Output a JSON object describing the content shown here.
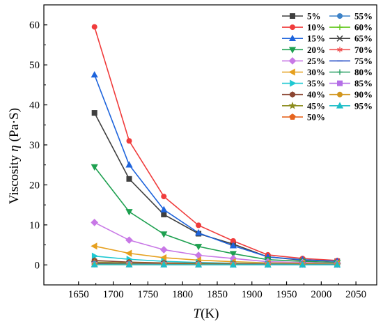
{
  "chart_data": {
    "type": "line",
    "xlabel_italic": "T",
    "xlabel_rest": "(K)",
    "ylabel_prefix": "Viscosity ",
    "ylabel_italic": "η",
    "ylabel_rest": " (Pa·S)",
    "xlim": [
      1600,
      2080
    ],
    "ylim": [
      -5,
      65
    ],
    "xticks": [
      1650,
      1700,
      1750,
      1800,
      1850,
      1900,
      1950,
      2000,
      2050
    ],
    "yticks": [
      0,
      10,
      20,
      30,
      40,
      50,
      60
    ],
    "x": [
      1673,
      1723,
      1773,
      1823,
      1873,
      1923,
      1973,
      2023
    ],
    "series": [
      {
        "name": "5%",
        "color": "#3f3f3f",
        "marker": "square",
        "values": [
          38.0,
          21.5,
          12.6,
          7.8,
          5.2,
          2.0,
          1.2,
          0.9
        ]
      },
      {
        "name": "10%",
        "color": "#f03c3c",
        "marker": "circle",
        "values": [
          59.5,
          31.0,
          17.1,
          9.9,
          6.0,
          2.5,
          1.6,
          1.1
        ]
      },
      {
        "name": "15%",
        "color": "#1e64dc",
        "marker": "triangle-up",
        "values": [
          47.5,
          25.0,
          13.8,
          8.0,
          4.8,
          2.0,
          1.3,
          0.9
        ]
      },
      {
        "name": "20%",
        "color": "#1ea050",
        "marker": "triangle-down",
        "values": [
          24.5,
          13.3,
          7.7,
          4.6,
          2.8,
          1.3,
          0.9,
          0.6
        ]
      },
      {
        "name": "25%",
        "color": "#c878e6",
        "marker": "diamond",
        "values": [
          10.6,
          6.2,
          3.8,
          2.4,
          1.6,
          0.8,
          0.6,
          0.4
        ]
      },
      {
        "name": "30%",
        "color": "#e6a01e",
        "marker": "triangle-left",
        "values": [
          4.7,
          2.9,
          1.8,
          1.2,
          0.8,
          0.5,
          0.4,
          0.3
        ]
      },
      {
        "name": "35%",
        "color": "#1ec8d2",
        "marker": "triangle-right",
        "values": [
          2.2,
          1.4,
          0.9,
          0.6,
          0.4,
          0.3,
          0.2,
          0.2
        ]
      },
      {
        "name": "40%",
        "color": "#8c4632",
        "marker": "hexagon",
        "values": [
          1.1,
          0.7,
          0.5,
          0.4,
          0.3,
          0.2,
          0.2,
          0.1
        ]
      },
      {
        "name": "45%",
        "color": "#8c8c1e",
        "marker": "star",
        "values": [
          0.7,
          0.5,
          0.35,
          0.25,
          0.2,
          0.15,
          0.12,
          0.1
        ]
      },
      {
        "name": "50%",
        "color": "#e6641e",
        "marker": "pentagon",
        "values": [
          0.5,
          0.35,
          0.25,
          0.2,
          0.15,
          0.12,
          0.1,
          0.08
        ]
      },
      {
        "name": "55%",
        "color": "#3c82c8",
        "marker": "sphere",
        "values": [
          0.4,
          0.3,
          0.2,
          0.15,
          0.12,
          0.1,
          0.08,
          0.06
        ]
      },
      {
        "name": "60%",
        "color": "#64c81e",
        "marker": "plus",
        "values": [
          0.3,
          0.22,
          0.16,
          0.12,
          0.1,
          0.08,
          0.06,
          0.05
        ]
      },
      {
        "name": "65%",
        "color": "#3c3c3c",
        "marker": "x",
        "values": [
          0.25,
          0.18,
          0.13,
          0.1,
          0.08,
          0.06,
          0.05,
          0.04
        ]
      },
      {
        "name": "70%",
        "color": "#f05050",
        "marker": "asterisk",
        "values": [
          0.2,
          0.15,
          0.11,
          0.08,
          0.06,
          0.05,
          0.04,
          0.03
        ]
      },
      {
        "name": "75%",
        "color": "#2850c8",
        "marker": "line",
        "values": [
          0.16,
          0.12,
          0.09,
          0.07,
          0.05,
          0.04,
          0.03,
          0.03
        ]
      },
      {
        "name": "80%",
        "color": "#28a064",
        "marker": "plus",
        "values": [
          0.13,
          0.1,
          0.07,
          0.05,
          0.04,
          0.03,
          0.03,
          0.02
        ]
      },
      {
        "name": "85%",
        "color": "#b46ee6",
        "marker": "square",
        "values": [
          0.1,
          0.08,
          0.06,
          0.04,
          0.03,
          0.03,
          0.02,
          0.02
        ]
      },
      {
        "name": "90%",
        "color": "#d2961e",
        "marker": "circle",
        "values": [
          0.08,
          0.06,
          0.05,
          0.04,
          0.03,
          0.02,
          0.02,
          0.02
        ]
      },
      {
        "name": "95%",
        "color": "#1ebec8",
        "marker": "triangle-up",
        "values": [
          0.06,
          0.05,
          0.04,
          0.03,
          0.02,
          0.02,
          0.02,
          0.01
        ]
      }
    ]
  }
}
